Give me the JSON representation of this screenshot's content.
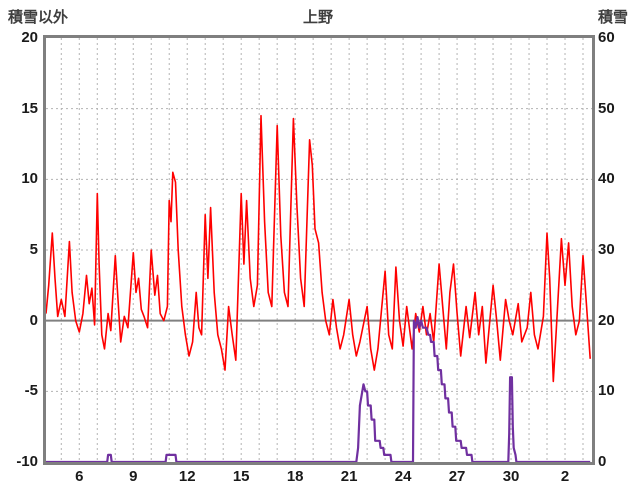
{
  "chart_data": {
    "type": "line",
    "title": "上野",
    "left_axis": {
      "label": "積雪以外",
      "min": -10,
      "max": 20,
      "ticks": [
        20,
        15,
        10,
        5,
        0,
        -5,
        -10
      ]
    },
    "right_axis": {
      "label": "積雪",
      "min": 0,
      "max": 60,
      "ticks": [
        60,
        50,
        40,
        30,
        20,
        10,
        0
      ]
    },
    "x_axis": {
      "min": 4.15,
      "max": 34.5,
      "day_grid_step": 1,
      "ticks": [
        {
          "value": 6,
          "label": "6"
        },
        {
          "value": 9,
          "label": "9"
        },
        {
          "value": 12,
          "label": "12"
        },
        {
          "value": 15,
          "label": "15"
        },
        {
          "value": 18,
          "label": "18"
        },
        {
          "value": 21,
          "label": "21"
        },
        {
          "value": 24,
          "label": "24"
        },
        {
          "value": 27,
          "label": "27"
        },
        {
          "value": 30,
          "label": "30"
        },
        {
          "value": 33,
          "label": "2"
        }
      ]
    },
    "zero_line_value": 0,
    "grid": {
      "color": "#b3b3b3",
      "dash": "2,3",
      "zero_line_color": "#808080"
    },
    "series": [
      {
        "name": "積雪以外",
        "axis": "left",
        "color": "#ff0000",
        "width": 1.6,
        "points": [
          [
            4.15,
            0.5
          ],
          [
            4.3,
            2.5
          ],
          [
            4.5,
            6.2
          ],
          [
            4.65,
            3
          ],
          [
            4.8,
            0.3
          ],
          [
            5.0,
            1.5
          ],
          [
            5.2,
            0.3
          ],
          [
            5.45,
            5.6
          ],
          [
            5.6,
            2
          ],
          [
            5.8,
            0
          ],
          [
            6.0,
            -0.8
          ],
          [
            6.2,
            0.5
          ],
          [
            6.4,
            3.2
          ],
          [
            6.55,
            1.2
          ],
          [
            6.7,
            2.3
          ],
          [
            6.85,
            -0.3
          ],
          [
            7.0,
            9
          ],
          [
            7.1,
            4
          ],
          [
            7.25,
            -1
          ],
          [
            7.4,
            -2
          ],
          [
            7.6,
            0.5
          ],
          [
            7.75,
            -0.7
          ],
          [
            8.0,
            4.6
          ],
          [
            8.15,
            1.5
          ],
          [
            8.3,
            -1.5
          ],
          [
            8.5,
            0.3
          ],
          [
            8.7,
            -0.5
          ],
          [
            9.0,
            4.8
          ],
          [
            9.15,
            2
          ],
          [
            9.3,
            3
          ],
          [
            9.45,
            0.8
          ],
          [
            9.6,
            0.3
          ],
          [
            9.8,
            -0.5
          ],
          [
            10.0,
            5
          ],
          [
            10.2,
            1.8
          ],
          [
            10.35,
            3.2
          ],
          [
            10.5,
            0.5
          ],
          [
            10.7,
            0
          ],
          [
            10.9,
            1
          ],
          [
            11.0,
            8.5
          ],
          [
            11.1,
            7
          ],
          [
            11.2,
            10.5
          ],
          [
            11.35,
            9.8
          ],
          [
            11.5,
            5
          ],
          [
            11.7,
            1
          ],
          [
            11.9,
            -1
          ],
          [
            12.1,
            -2.5
          ],
          [
            12.3,
            -1.5
          ],
          [
            12.5,
            2
          ],
          [
            12.65,
            -0.5
          ],
          [
            12.8,
            -1
          ],
          [
            13.0,
            7.5
          ],
          [
            13.15,
            3
          ],
          [
            13.3,
            8
          ],
          [
            13.5,
            2
          ],
          [
            13.7,
            -1
          ],
          [
            13.9,
            -2
          ],
          [
            14.1,
            -3.5
          ],
          [
            14.3,
            1
          ],
          [
            14.5,
            -1
          ],
          [
            14.7,
            -2.8
          ],
          [
            15.0,
            9
          ],
          [
            15.15,
            4
          ],
          [
            15.3,
            8.5
          ],
          [
            15.5,
            3
          ],
          [
            15.7,
            1
          ],
          [
            15.9,
            2.5
          ],
          [
            16.1,
            14.5
          ],
          [
            16.3,
            7
          ],
          [
            16.5,
            2
          ],
          [
            16.7,
            1
          ],
          [
            17.0,
            13.8
          ],
          [
            17.2,
            6
          ],
          [
            17.4,
            2
          ],
          [
            17.6,
            1
          ],
          [
            17.9,
            14.3
          ],
          [
            18.1,
            8
          ],
          [
            18.3,
            3
          ],
          [
            18.5,
            1
          ],
          [
            18.8,
            12.8
          ],
          [
            18.95,
            11
          ],
          [
            19.1,
            6.5
          ],
          [
            19.3,
            5.5
          ],
          [
            19.5,
            2
          ],
          [
            19.7,
            0
          ],
          [
            19.9,
            -1
          ],
          [
            20.1,
            1.5
          ],
          [
            20.3,
            -0.5
          ],
          [
            20.5,
            -2
          ],
          [
            20.7,
            -1
          ],
          [
            21.0,
            1.5
          ],
          [
            21.2,
            -1
          ],
          [
            21.4,
            -2.5
          ],
          [
            21.6,
            -1.5
          ],
          [
            22.0,
            1
          ],
          [
            22.2,
            -2
          ],
          [
            22.4,
            -3.5
          ],
          [
            22.6,
            -2
          ],
          [
            23.0,
            3.5
          ],
          [
            23.2,
            -1
          ],
          [
            23.4,
            -2
          ],
          [
            23.6,
            3.8
          ],
          [
            23.8,
            0
          ],
          [
            24.0,
            -1.8
          ],
          [
            24.2,
            1
          ],
          [
            24.35,
            -0.5
          ],
          [
            24.5,
            -2
          ],
          [
            24.7,
            0.5
          ],
          [
            24.9,
            -0.8
          ],
          [
            25.1,
            1
          ],
          [
            25.3,
            -1
          ],
          [
            25.5,
            0.5
          ],
          [
            25.7,
            -1.5
          ],
          [
            26.0,
            4
          ],
          [
            26.2,
            1
          ],
          [
            26.4,
            -2
          ],
          [
            26.6,
            2
          ],
          [
            26.8,
            4
          ],
          [
            27.0,
            0.5
          ],
          [
            27.2,
            -2.5
          ],
          [
            27.5,
            1
          ],
          [
            27.7,
            -1.2
          ],
          [
            28.0,
            2
          ],
          [
            28.2,
            -1
          ],
          [
            28.4,
            1
          ],
          [
            28.6,
            -3
          ],
          [
            29.0,
            2.5
          ],
          [
            29.2,
            0
          ],
          [
            29.4,
            -2.8
          ],
          [
            29.7,
            1.5
          ],
          [
            29.9,
            0
          ],
          [
            30.1,
            -1
          ],
          [
            30.4,
            1.2
          ],
          [
            30.6,
            -1.5
          ],
          [
            30.9,
            -0.5
          ],
          [
            31.1,
            2
          ],
          [
            31.3,
            -1
          ],
          [
            31.5,
            -2
          ],
          [
            31.8,
            0.3
          ],
          [
            32.0,
            6.2
          ],
          [
            32.15,
            3
          ],
          [
            32.35,
            -4.3
          ],
          [
            32.5,
            -1
          ],
          [
            32.8,
            5.8
          ],
          [
            33.0,
            2.5
          ],
          [
            33.2,
            5.5
          ],
          [
            33.4,
            1
          ],
          [
            33.6,
            -1
          ],
          [
            33.8,
            0
          ],
          [
            34.0,
            4.6
          ],
          [
            34.2,
            1
          ],
          [
            34.4,
            -2.7
          ]
        ]
      },
      {
        "name": "積雪",
        "axis": "right",
        "color": "#7030a0",
        "width": 2.2,
        "points": [
          [
            4.15,
            0
          ],
          [
            7.55,
            0
          ],
          [
            7.6,
            1
          ],
          [
            7.75,
            1
          ],
          [
            7.8,
            0
          ],
          [
            10.8,
            0
          ],
          [
            10.85,
            1
          ],
          [
            11.35,
            1
          ],
          [
            11.4,
            0
          ],
          [
            21.4,
            0
          ],
          [
            21.5,
            2
          ],
          [
            21.6,
            8
          ],
          [
            21.8,
            11
          ],
          [
            21.9,
            10
          ],
          [
            22.0,
            10
          ],
          [
            22.05,
            8
          ],
          [
            22.2,
            8
          ],
          [
            22.25,
            6
          ],
          [
            22.4,
            6
          ],
          [
            22.45,
            3
          ],
          [
            22.7,
            3
          ],
          [
            22.75,
            2
          ],
          [
            22.9,
            2
          ],
          [
            22.95,
            1
          ],
          [
            23.3,
            1
          ],
          [
            23.35,
            0
          ],
          [
            24.55,
            0
          ],
          [
            24.6,
            20
          ],
          [
            24.7,
            19
          ],
          [
            24.8,
            20.5
          ],
          [
            24.9,
            19
          ],
          [
            25.0,
            20
          ],
          [
            25.1,
            19
          ],
          [
            25.3,
            19
          ],
          [
            25.4,
            18
          ],
          [
            25.5,
            18
          ],
          [
            25.55,
            17
          ],
          [
            25.7,
            17
          ],
          [
            25.75,
            15
          ],
          [
            25.9,
            15
          ],
          [
            25.95,
            13
          ],
          [
            26.1,
            13
          ],
          [
            26.15,
            11
          ],
          [
            26.3,
            11
          ],
          [
            26.35,
            9
          ],
          [
            26.5,
            9
          ],
          [
            26.55,
            7
          ],
          [
            26.7,
            7
          ],
          [
            26.75,
            5
          ],
          [
            26.9,
            5
          ],
          [
            26.95,
            3
          ],
          [
            27.2,
            3
          ],
          [
            27.25,
            2
          ],
          [
            27.5,
            2
          ],
          [
            27.55,
            1
          ],
          [
            27.8,
            1
          ],
          [
            27.85,
            0
          ],
          [
            29.85,
            0
          ],
          [
            29.9,
            4
          ],
          [
            29.95,
            12
          ],
          [
            30.05,
            12
          ],
          [
            30.1,
            5
          ],
          [
            30.15,
            2
          ],
          [
            30.25,
            1
          ],
          [
            30.3,
            0
          ],
          [
            34.4,
            0
          ]
        ]
      }
    ]
  }
}
